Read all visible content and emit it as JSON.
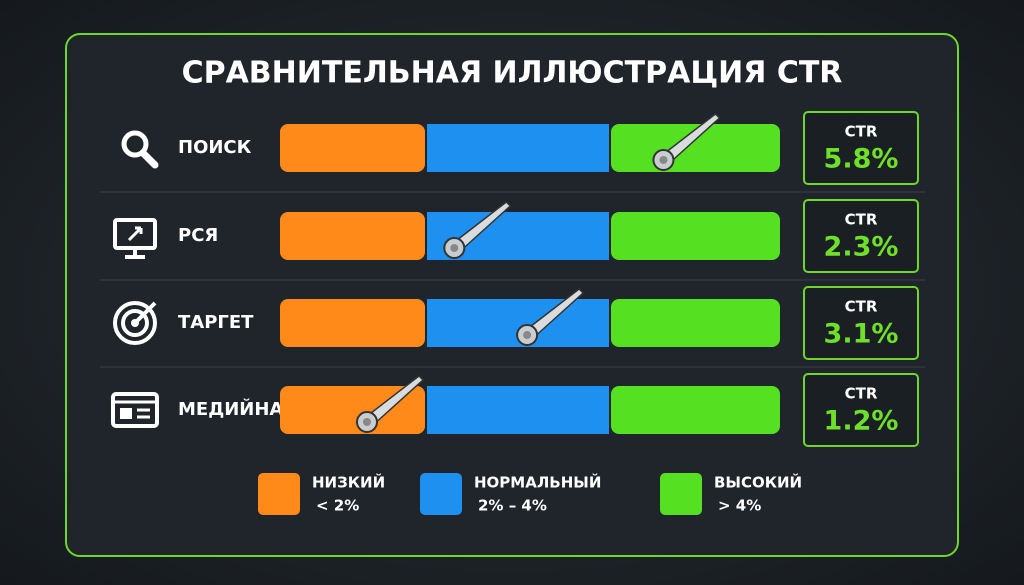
{
  "title": "СРАВНИТЕЛЬНАЯ ИЛЛЮСТРАЦИЯ CTR",
  "rows": [
    {
      "label": "ПОИСК",
      "ctr_label": "CTR",
      "value": 5.8,
      "value_label": "5.8%"
    },
    {
      "label": "РСЯ",
      "ctr_label": "CTR",
      "value": 2.3,
      "value_label": "2.3%"
    },
    {
      "label": "ТАРГЕТ",
      "ctr_label": "CTR",
      "value": 3.1,
      "value_label": "3.1%"
    },
    {
      "label": "МЕДИЙНАЯ",
      "ctr_label": "CTR",
      "value": 1.2,
      "value_label": "1.2%"
    }
  ],
  "zones": [
    {
      "label": "НИЗКИЙ",
      "range_label": "< 2%",
      "max": 2,
      "color": "#ff8a1a"
    },
    {
      "label": "НОРМАЛЬНЫЙ",
      "range_label": "2% – 4%",
      "min": 2,
      "max": 4,
      "color": "#1e90f0"
    },
    {
      "label": "ВЫСОКИЙ",
      "range_label": "> 4%",
      "min": 4,
      "color": "#55e022"
    }
  ]
}
